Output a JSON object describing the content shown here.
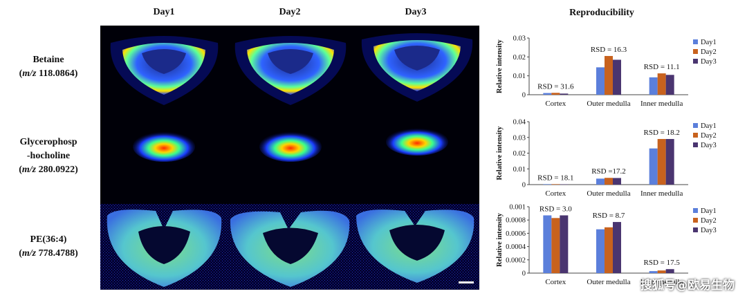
{
  "columns": [
    "Day1",
    "Day2",
    "Day3"
  ],
  "rows": [
    {
      "name": "Betaine",
      "mz_prefix": "m/z",
      "mz_value": "118.0864"
    },
    {
      "name_line1": "Glycerophosp",
      "name_line2": "-hocholine",
      "mz_prefix": "m/z",
      "mz_value": "280.0922"
    },
    {
      "name": "PE(36:4)",
      "mz_prefix": "m/z",
      "mz_value": "778.4788"
    }
  ],
  "repro_title": "Reproducibility",
  "watermark": "搜狐号@欧易生物",
  "colors": {
    "Day1": "#5b7fdb",
    "Day2": "#c8621e",
    "Day3": "#4a3570"
  },
  "chart_data": [
    {
      "type": "bar",
      "ylabel": "Relative intensity",
      "categories": [
        "Cortex",
        "Outer medulla",
        "Inner medulla"
      ],
      "ylim": [
        0,
        0.03
      ],
      "yticks": [
        "0",
        "0.01",
        "0.02",
        "0.03"
      ],
      "series": [
        {
          "name": "Day1",
          "values": [
            0.0009,
            0.0145,
            0.0092
          ]
        },
        {
          "name": "Day2",
          "values": [
            0.001,
            0.0205,
            0.0113
          ]
        },
        {
          "name": "Day3",
          "values": [
            0.0006,
            0.0185,
            0.0105
          ]
        }
      ],
      "annotations": [
        "RSD = 31.6",
        "RSD = 16.3",
        "RSD = 11.1"
      ],
      "legend": "top-right"
    },
    {
      "type": "bar",
      "ylabel": "Relative intensity",
      "categories": [
        "Cortex",
        "Outer medulla",
        "Inner medulla"
      ],
      "ylim": [
        0,
        0.04
      ],
      "yticks": [
        "0",
        "0.01",
        "0.02",
        "0.03",
        "0.04"
      ],
      "series": [
        {
          "name": "Day1",
          "values": [
            0.0003,
            0.0038,
            0.023
          ]
        },
        {
          "name": "Day2",
          "values": [
            0.0003,
            0.0043,
            0.029
          ]
        },
        {
          "name": "Day3",
          "values": [
            0.0002,
            0.0042,
            0.029
          ]
        }
      ],
      "annotations": [
        "RSD = 18.1",
        "RSD =17.2",
        "RSD = 18.2"
      ],
      "legend": "top-right"
    },
    {
      "type": "bar",
      "ylabel": "Relative intensity",
      "categories": [
        "Cortex",
        "Outer medulla",
        "Inner medulla"
      ],
      "ylim": [
        0,
        0.001
      ],
      "yticks": [
        "0",
        "0.0002",
        "0.0004",
        "0.0006",
        "0.0008",
        "0.001"
      ],
      "series": [
        {
          "name": "Day1",
          "values": [
            0.00087,
            0.00066,
            3e-05
          ]
        },
        {
          "name": "Day2",
          "values": [
            0.00083,
            0.00069,
            4e-05
          ]
        },
        {
          "name": "Day3",
          "values": [
            0.00087,
            0.00077,
            6e-05
          ]
        }
      ],
      "annotations": [
        "RSD = 3.0",
        "RSD = 8.7",
        "RSD = 17.5"
      ],
      "legend": "top-right"
    }
  ]
}
